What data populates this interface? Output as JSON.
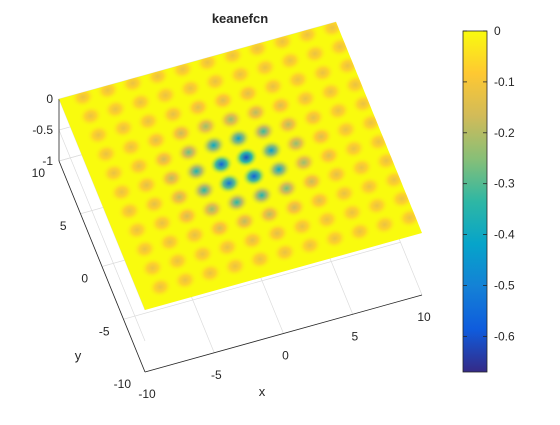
{
  "chart_data": {
    "type": "surface",
    "title": "keanefcn",
    "xlabel": "x",
    "ylabel": "y",
    "zlabel": "",
    "xlim": [
      -10,
      10
    ],
    "ylim": [
      -10,
      10
    ],
    "zlim": [
      -1,
      0
    ],
    "x_ticks": [
      "-10",
      "-5",
      "0",
      "5",
      "10"
    ],
    "y_ticks": [
      "-10",
      "-5",
      "0",
      "5",
      "10"
    ],
    "z_ticks": [
      "0",
      "-0.5",
      "-1"
    ],
    "dimple_spacing": 1.8,
    "dimples_per_axis": 11,
    "surface_value_min": -0.67,
    "surface_value_max": 0,
    "grid": true,
    "colormap": "parula",
    "colorbar": {
      "ticks": [
        "0",
        "-0.1",
        "-0.2",
        "-0.3",
        "-0.4",
        "-0.5",
        "-0.6"
      ],
      "limits": [
        -0.67,
        0
      ],
      "colors": [
        "#352a87",
        "#0f5cdd",
        "#1481d6",
        "#06a4ca",
        "#2eb7a4",
        "#87bf77",
        "#d1bb59",
        "#fec832",
        "#f9fb0e"
      ]
    }
  }
}
